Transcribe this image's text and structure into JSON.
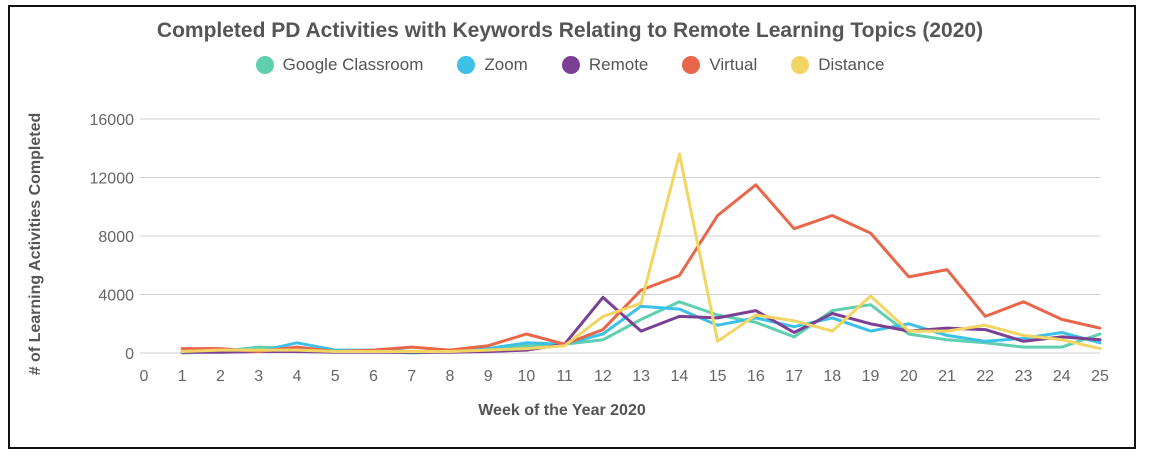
{
  "chart_data": {
    "type": "line",
    "title": "Completed PD Activities with Keywords Relating to Remote Learning Topics (2020)",
    "xlabel": "Week of the Year 2020",
    "ylabel": "# of Learning Activities Completed",
    "x_ticks": [
      0,
      1,
      2,
      3,
      4,
      5,
      6,
      7,
      8,
      9,
      10,
      11,
      12,
      13,
      14,
      15,
      16,
      17,
      18,
      19,
      20,
      21,
      22,
      23,
      24,
      25
    ],
    "y_ticks": [
      0,
      4000,
      8000,
      12000,
      16000
    ],
    "xlim": [
      0,
      25
    ],
    "ylim": [
      0,
      16000
    ],
    "grid": "horizontal",
    "legend_position": "top",
    "x": [
      1,
      2,
      3,
      4,
      5,
      6,
      7,
      8,
      9,
      10,
      11,
      12,
      13,
      14,
      15,
      16,
      17,
      18,
      19,
      20,
      21,
      22,
      23,
      24,
      25
    ],
    "series": [
      {
        "name": "Google Classroom",
        "color": "#5fcfb0",
        "values": [
          0,
          100,
          400,
          300,
          100,
          100,
          0,
          100,
          300,
          500,
          600,
          900,
          2300,
          3500,
          2600,
          2100,
          1100,
          2900,
          3300,
          1300,
          900,
          700,
          400,
          400,
          1300
        ]
      },
      {
        "name": "Zoom",
        "color": "#3ec1e8",
        "values": [
          100,
          100,
          100,
          700,
          200,
          200,
          100,
          100,
          300,
          700,
          600,
          1300,
          3200,
          3000,
          1900,
          2400,
          1800,
          2400,
          1500,
          2000,
          1200,
          800,
          1000,
          1400,
          700
        ]
      },
      {
        "name": "Remote",
        "color": "#7b3f94",
        "values": [
          50,
          50,
          100,
          100,
          50,
          50,
          50,
          50,
          100,
          200,
          600,
          3800,
          1500,
          2500,
          2400,
          2900,
          1400,
          2700,
          2000,
          1500,
          1700,
          1600,
          800,
          1100,
          900
        ]
      },
      {
        "name": "Virtual",
        "color": "#e8674a",
        "values": [
          300,
          300,
          100,
          400,
          100,
          200,
          400,
          200,
          500,
          1300,
          600,
          1600,
          4300,
          5300,
          9400,
          11500,
          8500,
          9400,
          8200,
          5200,
          5700,
          2500,
          3500,
          2300,
          1700
        ]
      },
      {
        "name": "Distance",
        "color": "#f2d562",
        "values": [
          100,
          200,
          200,
          200,
          100,
          100,
          100,
          100,
          200,
          300,
          500,
          2500,
          3400,
          13600,
          800,
          2600,
          2200,
          1500,
          3900,
          1500,
          1500,
          1900,
          1200,
          900,
          300
        ]
      }
    ]
  }
}
